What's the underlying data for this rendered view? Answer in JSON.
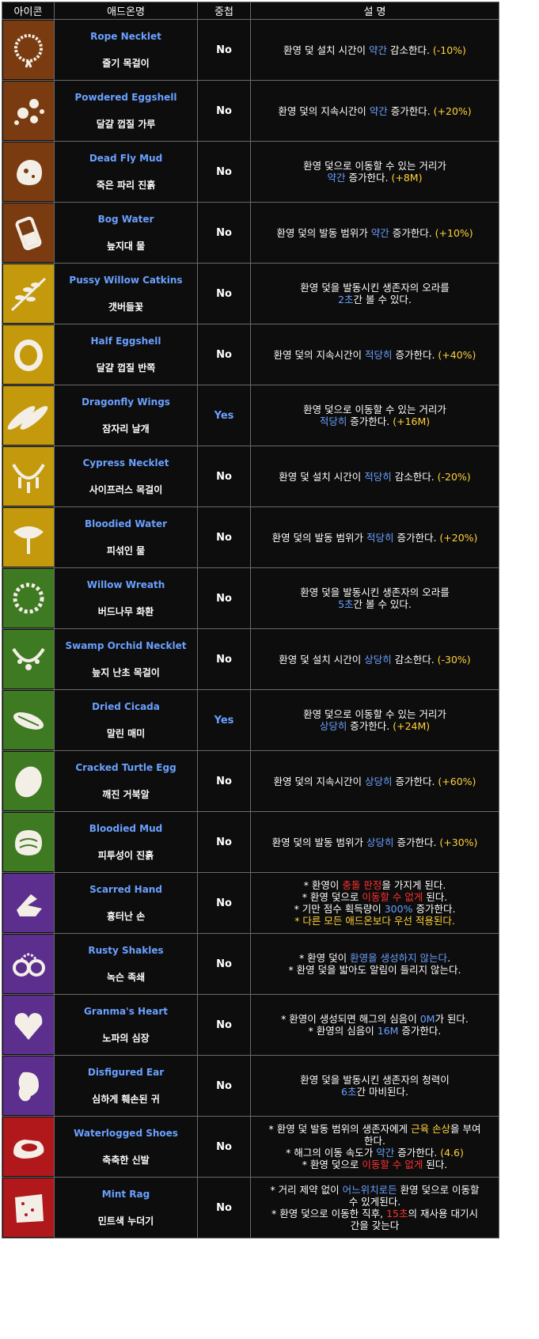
{
  "headers": [
    "아이콘",
    "애드온명",
    "중첩",
    "설  명"
  ],
  "colors": {
    "brown": "#7a3b10",
    "yellow": "#c49a0c",
    "green": "#3e7a22",
    "purple": "#5c2f8e",
    "red": "#b1181c",
    "highlight_blue": "#6aa0ff",
    "highlight_yellow": "#ffd23a",
    "highlight_red": "#ff3030"
  },
  "rows": [
    {
      "icon": "rope-necklet-icon",
      "color": "#7a3b10",
      "en": "Rope Necklet",
      "ko": "줄기 목걸이",
      "stack": "No",
      "desc": [
        [
          [
            "환영 덫 설치 시간이 ",
            ""
          ],
          [
            "약간",
            "b"
          ],
          [
            " 감소한다. ",
            ""
          ],
          [
            "(-10%)",
            "y"
          ]
        ]
      ]
    },
    {
      "icon": "powdered-eggshell-icon",
      "color": "#7a3b10",
      "en": "Powdered Eggshell",
      "ko": "달걀 껍질 가루",
      "stack": "No",
      "desc": [
        [
          [
            "환영 덫의 지속시간이 ",
            ""
          ],
          [
            "약간",
            "b"
          ],
          [
            " 증가한다. ",
            ""
          ],
          [
            "(+20%)",
            "y"
          ]
        ]
      ]
    },
    {
      "icon": "dead-fly-mud-icon",
      "color": "#7a3b10",
      "en": "Dead Fly Mud",
      "ko": "죽은 파리 진흙",
      "stack": "No",
      "desc": [
        [
          [
            "환영 덫으로 이동할 수 있는 거리가",
            ""
          ]
        ],
        [
          [
            "약간",
            "b"
          ],
          [
            " 증가한다. ",
            ""
          ],
          [
            "(+8M)",
            "y"
          ]
        ]
      ]
    },
    {
      "icon": "bog-water-icon",
      "color": "#7a3b10",
      "en": "Bog Water",
      "ko": "늪지대 물",
      "stack": "No",
      "desc": [
        [
          [
            "환영 덫의 발동 범위가 ",
            ""
          ],
          [
            "약간",
            "b"
          ],
          [
            " 증가한다. ",
            ""
          ],
          [
            "(+10%)",
            "y"
          ]
        ]
      ]
    },
    {
      "icon": "pussy-willow-catkins-icon",
      "color": "#c49a0c",
      "en": "Pussy Willow Catkins",
      "ko": "갯버들꽃",
      "stack": "No",
      "desc": [
        [
          [
            "환영 덫을 발동시킨 생존자의 오라를",
            ""
          ]
        ],
        [
          [
            "2초",
            "b"
          ],
          [
            "간 볼 수 있다.",
            ""
          ]
        ]
      ]
    },
    {
      "icon": "half-eggshell-icon",
      "color": "#c49a0c",
      "en": "Half Eggshell",
      "ko": "달걀 껍질 반쪽",
      "stack": "No",
      "desc": [
        [
          [
            "환영 덫의 지속시간이 ",
            ""
          ],
          [
            "적당히",
            "b"
          ],
          [
            " 증가한다. ",
            ""
          ],
          [
            "(+40%)",
            "y"
          ]
        ]
      ]
    },
    {
      "icon": "dragonfly-wings-icon",
      "color": "#c49a0c",
      "en": "Dragonfly Wings",
      "ko": "잠자리 날개",
      "stack": "Yes",
      "desc": [
        [
          [
            "환영 덫으로 이동할 수 있는 거리가",
            ""
          ]
        ],
        [
          [
            "적당히",
            "b"
          ],
          [
            " 증가한다. ",
            ""
          ],
          [
            "(+16M)",
            "y"
          ]
        ]
      ]
    },
    {
      "icon": "cypress-necklet-icon",
      "color": "#c49a0c",
      "en": "Cypress Necklet",
      "ko": "사이프러스 목걸이",
      "stack": "No",
      "desc": [
        [
          [
            "환영 덫 설치 시간이 ",
            ""
          ],
          [
            "적당히",
            "b"
          ],
          [
            " 감소한다. ",
            ""
          ],
          [
            "(-20%)",
            "y"
          ]
        ]
      ]
    },
    {
      "icon": "bloodied-water-icon",
      "color": "#c49a0c",
      "en": "Bloodied Water",
      "ko": "피섞인 물",
      "stack": "No",
      "desc": [
        [
          [
            "환영 덫의 발동 범위가 ",
            ""
          ],
          [
            "적당히",
            "b"
          ],
          [
            " 증가한다. ",
            ""
          ],
          [
            "(+20%)",
            "y"
          ]
        ]
      ]
    },
    {
      "icon": "willow-wreath-icon",
      "color": "#3e7a22",
      "en": "Willow Wreath",
      "ko": "버드나무 화환",
      "stack": "No",
      "desc": [
        [
          [
            "환영 덫을 발동시킨 생존자의 오라를",
            ""
          ]
        ],
        [
          [
            "5초",
            "b"
          ],
          [
            "간 볼 수 있다.",
            ""
          ]
        ]
      ]
    },
    {
      "icon": "swamp-orchid-necklet-icon",
      "color": "#3e7a22",
      "en": "Swamp Orchid Necklet",
      "ko": "늪지 난초 목걸이",
      "stack": "No",
      "desc": [
        [
          [
            "환영 덫 설치 시간이 ",
            ""
          ],
          [
            "상당히",
            "b"
          ],
          [
            " 감소한다. ",
            ""
          ],
          [
            "(-30%)",
            "y"
          ]
        ]
      ]
    },
    {
      "icon": "dried-cicada-icon",
      "color": "#3e7a22",
      "en": "Dried Cicada",
      "ko": "말린 매미",
      "stack": "Yes",
      "desc": [
        [
          [
            "환영 덫으로 이동할 수 있는 거리가",
            ""
          ]
        ],
        [
          [
            "상당히",
            "b"
          ],
          [
            " 증가한다. ",
            ""
          ],
          [
            "(+24M)",
            "y"
          ]
        ]
      ]
    },
    {
      "icon": "cracked-turtle-egg-icon",
      "color": "#3e7a22",
      "en": "Cracked Turtle Egg",
      "ko": "깨진 거북알",
      "stack": "No",
      "desc": [
        [
          [
            "환영 덫의 지속시간이 ",
            ""
          ],
          [
            "상당히",
            "b"
          ],
          [
            " 증가한다. ",
            ""
          ],
          [
            "(+60%)",
            "y"
          ]
        ]
      ]
    },
    {
      "icon": "bloodied-mud-icon",
      "color": "#3e7a22",
      "en": "Bloodied Mud",
      "ko": "피투성이 진흙",
      "stack": "No",
      "desc": [
        [
          [
            "환영 덫의 발동 범위가 ",
            ""
          ],
          [
            "상당히",
            "b"
          ],
          [
            " 증가한다. ",
            ""
          ],
          [
            "(+30%)",
            "y"
          ]
        ]
      ]
    },
    {
      "icon": "scarred-hand-icon",
      "color": "#5c2f8e",
      "en": "Scarred Hand",
      "ko": "흉터난 손",
      "stack": "No",
      "desc": [
        [
          [
            "* 환영이 ",
            ""
          ],
          [
            "충돌 판정",
            "r"
          ],
          [
            "을 가지게 된다.",
            ""
          ]
        ],
        [
          [
            "* 환영 덫으로 ",
            ""
          ],
          [
            "이동할 수 없게",
            "r"
          ],
          [
            " 된다.",
            ""
          ]
        ],
        [
          [
            "* 기만 점수 획득량이 ",
            ""
          ],
          [
            "300%",
            "b"
          ],
          [
            " 증가한다.",
            ""
          ]
        ],
        [
          [
            "* 다른 모든 애드온보다 우선 적용된다.",
            "y"
          ]
        ]
      ]
    },
    {
      "icon": "rusty-shackles-icon",
      "color": "#5c2f8e",
      "en": "Rusty Shakles",
      "ko": "녹슨 족쇄",
      "stack": "No",
      "desc": [
        [
          [
            "* 환영 덫이 ",
            ""
          ],
          [
            "환영을 생성하지 않는다",
            "b"
          ],
          [
            ".",
            ""
          ]
        ],
        [
          [
            "* 환영 덫을 밟아도 알림이 들리지 않는다.",
            ""
          ]
        ]
      ]
    },
    {
      "icon": "granmas-heart-icon",
      "color": "#5c2f8e",
      "en": "Granma's Heart",
      "ko": "노파의 심장",
      "stack": "No",
      "desc": [
        [
          [
            "* 환영이 생성되면 해그의 심음이 ",
            ""
          ],
          [
            "0M",
            "b"
          ],
          [
            "가 된다.",
            ""
          ]
        ],
        [
          [
            "* 환영의 심음이 ",
            ""
          ],
          [
            "16M",
            "b"
          ],
          [
            " 증가한다.",
            ""
          ]
        ]
      ]
    },
    {
      "icon": "disfigured-ear-icon",
      "color": "#5c2f8e",
      "en": "Disfigured Ear",
      "ko": "심하게 훼손된 귀",
      "stack": "No",
      "desc": [
        [
          [
            "환영 덫을 발동시킨 생존자의 청력이",
            ""
          ]
        ],
        [
          [
            "6초",
            "b"
          ],
          [
            "간 마비된다.",
            ""
          ]
        ]
      ]
    },
    {
      "icon": "waterlogged-shoes-icon",
      "color": "#b1181c",
      "en": "Waterlogged Shoes",
      "ko": "축축한 신발",
      "stack": "No",
      "desc": [
        [
          [
            "* 환영 덫 발동 범위의 생존자에게 ",
            ""
          ],
          [
            "근육 손상",
            "y"
          ],
          [
            "을 부여",
            ""
          ]
        ],
        [
          [
            "한다.",
            ""
          ]
        ],
        [
          [
            "* 해그의 이동 속도가 ",
            ""
          ],
          [
            "약간",
            "b"
          ],
          [
            " 증가한다. ",
            ""
          ],
          [
            "(4.6)",
            "y"
          ]
        ],
        [
          [
            "* 환영 덫으로 ",
            ""
          ],
          [
            "이동할 수 없게",
            "r"
          ],
          [
            " 된다.",
            ""
          ]
        ]
      ]
    },
    {
      "icon": "mint-rag-icon",
      "color": "#b1181c",
      "en": "Mint Rag",
      "ko": "민트색 누더기",
      "stack": "No",
      "desc": [
        [
          [
            "* 거리 제약 없이 ",
            ""
          ],
          [
            "어느위치로든",
            "b"
          ],
          [
            " 환영 덫으로 이동할",
            ""
          ]
        ],
        [
          [
            "수 있게된다.",
            ""
          ]
        ],
        [
          [
            "* 환영 덫으로 이동한 직후, ",
            ""
          ],
          [
            "15초",
            "r"
          ],
          [
            "의 재사용 대기시",
            ""
          ]
        ],
        [
          [
            "간을 갖는다",
            ""
          ]
        ]
      ]
    }
  ]
}
